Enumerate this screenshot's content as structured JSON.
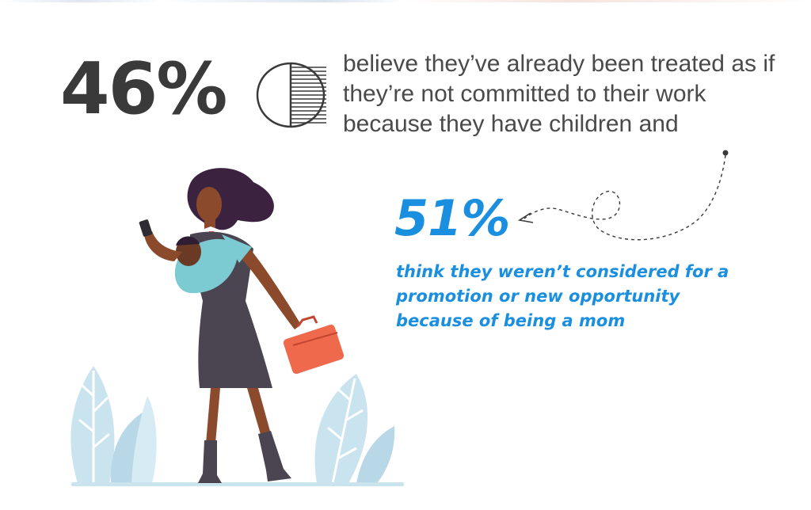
{
  "stats": [
    {
      "value": "46%",
      "description": "believe they’ve already been treated as if they’re not committed to their work because they have children and",
      "fraction_shown": 0.46
    },
    {
      "value": "51%",
      "description": "think they weren’t considered for a promotion or new opportunity because of being a mom"
    }
  ],
  "colors": {
    "primary_text": "#3a3a3a",
    "accent_blue": "#1a8fe0",
    "plant_blue": "#c9e3ef",
    "baby_carrier": "#7ccbd3",
    "briefcase": "#ef6a4d",
    "dress": "#4a4551"
  },
  "icons": [
    "pie-chart-icon",
    "dotted-arrow-icon"
  ]
}
